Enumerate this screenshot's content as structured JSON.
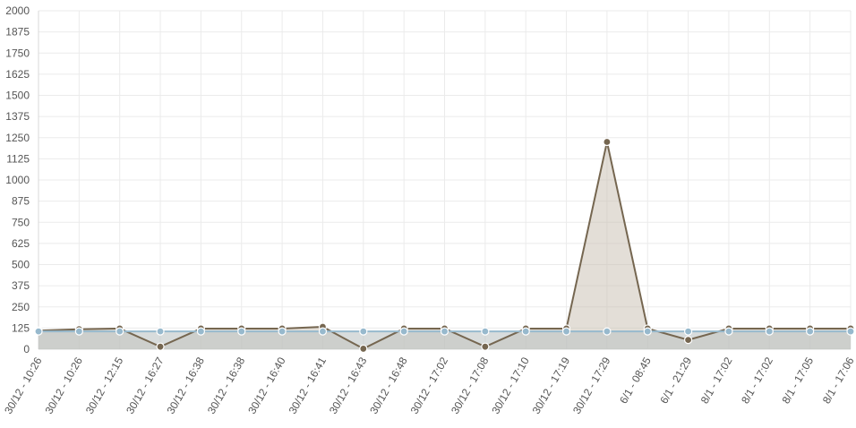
{
  "chart_data": {
    "type": "line",
    "categories": [
      "30/12 - 10:26",
      "30/12 - 10:26",
      "30/12 - 12:15",
      "30/12 - 16:27",
      "30/12 - 16:38",
      "30/12 - 16:38",
      "30/12 - 16:40",
      "30/12 - 16:41",
      "30/12 - 16:43",
      "30/12 - 16:48",
      "30/12 - 17:02",
      "30/12 - 17:08",
      "30/12 - 17:10",
      "30/12 - 17:19",
      "30/12 - 17:29",
      "6/1 - 08:45",
      "6/1 - 21:29",
      "8/1 - 17:02",
      "8/1 - 17:02",
      "8/1 - 17:05",
      "8/1 - 17:06"
    ],
    "series": [
      {
        "values": [
          110,
          118,
          122,
          15,
          122,
          122,
          122,
          132,
          3,
          122,
          122,
          15,
          122,
          122,
          1225,
          122,
          55,
          122,
          122,
          122,
          122
        ],
        "color": "#756650",
        "fill": "rgba(200,190,176,0.5)"
      },
      {
        "values": [
          105,
          105,
          105,
          105,
          105,
          105,
          105,
          105,
          105,
          105,
          105,
          105,
          105,
          105,
          105,
          105,
          105,
          105,
          105,
          105,
          105
        ],
        "color": "#97b9cd",
        "fill": "rgba(190,196,196,0.6)"
      }
    ],
    "ylim": [
      0,
      2000
    ],
    "yticks": [
      0,
      125,
      250,
      375,
      500,
      625,
      750,
      875,
      1000,
      1125,
      1250,
      1375,
      1500,
      1625,
      1750,
      1875,
      2000
    ],
    "grid": true
  }
}
